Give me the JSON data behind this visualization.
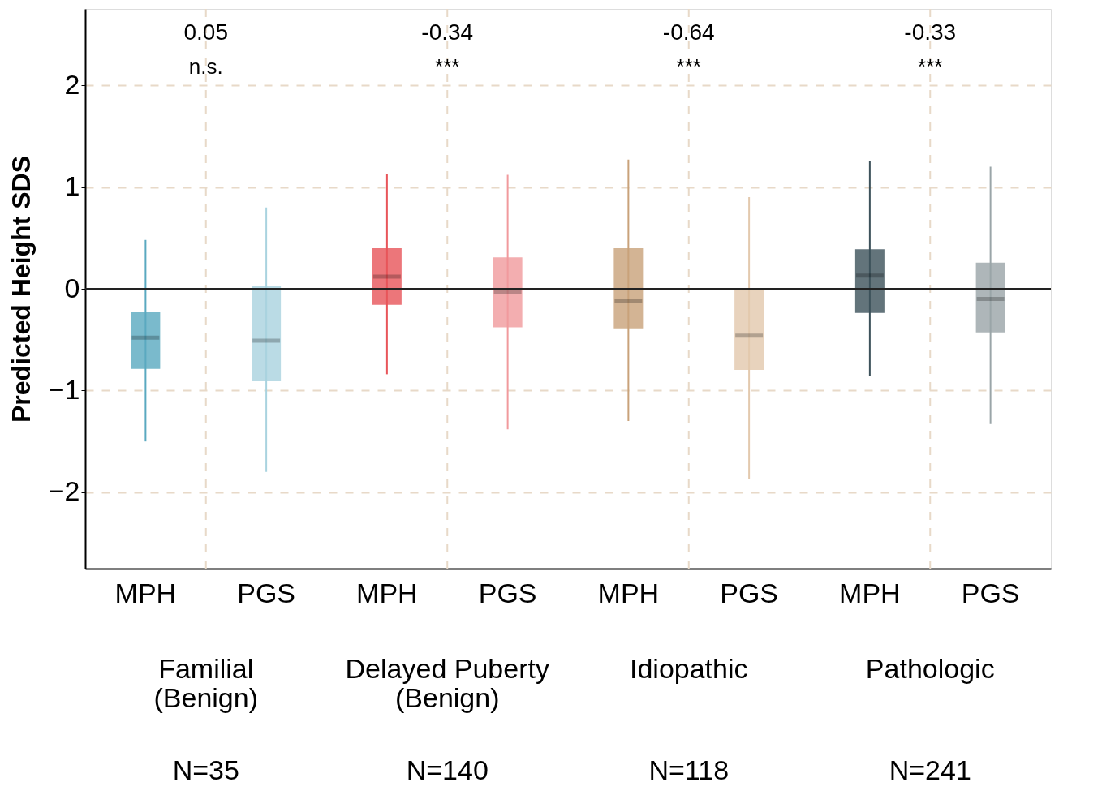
{
  "chart_data": {
    "type": "box",
    "ylabel": "Predicted Height SDS",
    "categories": [
      "MPH",
      "PGS",
      "MPH",
      "PGS",
      "MPH",
      "PGS",
      "MPH",
      "PGS"
    ],
    "colors": [
      "#5aa9c0",
      "#a9d3df",
      "#e8555a",
      "#f19a9d",
      "#c9a27a",
      "#e3c9ad",
      "#3d525b",
      "#9aa5a8"
    ],
    "boxes": [
      {
        "low": -1.5,
        "q1": -0.78,
        "median": -0.48,
        "q3": -0.24,
        "high": 0.48
      },
      {
        "low": -1.8,
        "q1": -0.9,
        "median": -0.51,
        "q3": 0.02,
        "high": 0.8
      },
      {
        "low": -0.84,
        "q1": -0.15,
        "median": 0.12,
        "q3": 0.39,
        "high": 1.13
      },
      {
        "low": -1.38,
        "q1": -0.37,
        "median": -0.03,
        "q3": 0.3,
        "high": 1.12
      },
      {
        "low": -1.3,
        "q1": -0.38,
        "median": -0.12,
        "q3": 0.39,
        "high": 1.27
      },
      {
        "low": -1.87,
        "q1": -0.79,
        "median": -0.46,
        "q3": -0.01,
        "high": 0.9
      },
      {
        "low": -0.86,
        "q1": -0.23,
        "median": 0.13,
        "q3": 0.38,
        "high": 1.26
      },
      {
        "low": -1.33,
        "q1": -0.42,
        "median": -0.1,
        "q3": 0.25,
        "high": 1.2
      }
    ],
    "ylim": [
      -2.75,
      2.75
    ],
    "yticks": [
      -2,
      -1,
      0,
      1,
      2
    ],
    "grid": true,
    "ref_lines": [
      {
        "axis": "y",
        "value": 0,
        "color": "#222222",
        "line_style": "solid"
      }
    ],
    "annotations": [
      "0.05",
      "n.s.",
      "Familial\n(Benign)",
      "N=35",
      "-0.34",
      "***",
      "Delayed Puberty\n(Benign)",
      "N=140",
      "-0.64",
      "***",
      "Idiopathic",
      "N=118",
      "-0.33",
      "***",
      "Pathologic",
      "N=241"
    ]
  }
}
